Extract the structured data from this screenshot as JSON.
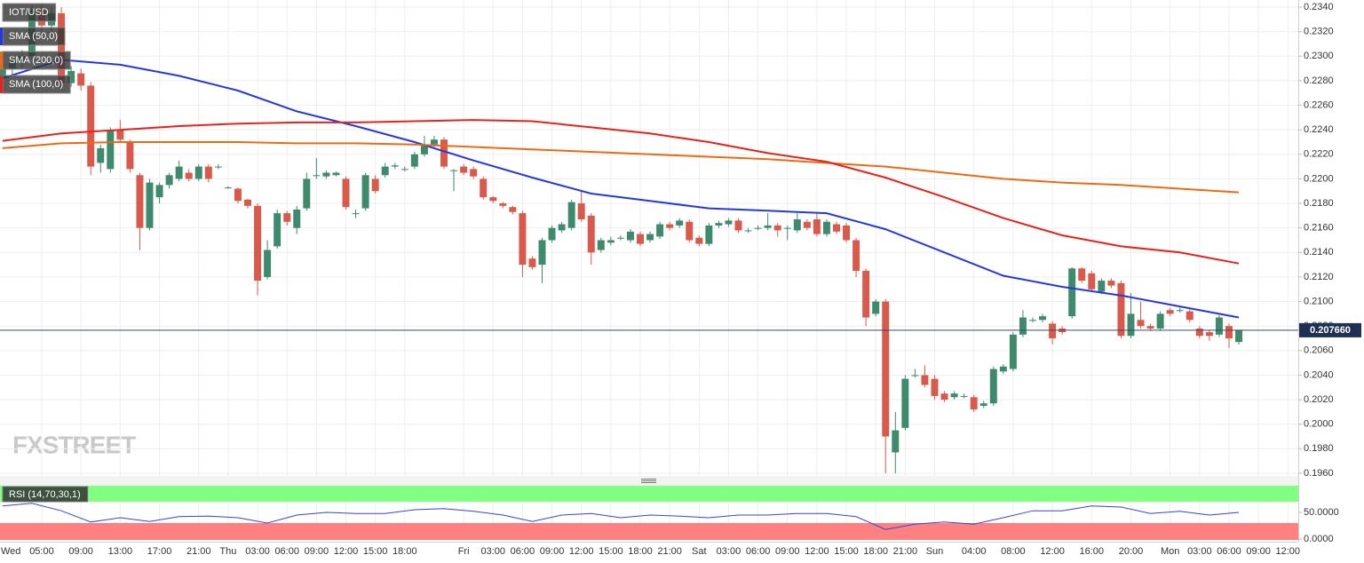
{
  "chart_data": [
    {
      "type": "candlestick",
      "symbol": "IOT/USD",
      "watermark": "FXSTREET",
      "up_color": "#3d8a6c",
      "down_color": "#d9594b",
      "grid": true,
      "open": [
        0.2283,
        0.229,
        0.2296,
        0.23,
        0.2338,
        0.2325,
        0.2335,
        0.2278,
        0.2286,
        0.2276,
        0.2213,
        0.2208,
        0.224,
        0.223,
        0.2203,
        0.216,
        0.2185,
        0.2195,
        0.22,
        0.2205,
        0.22,
        0.221,
        0.221,
        0.2193,
        0.2192,
        0.2183,
        0.2178,
        0.212,
        0.2145,
        0.2172,
        0.216,
        0.2176,
        0.2203,
        0.2202,
        0.2203,
        0.22,
        0.2172,
        0.2176,
        0.22,
        0.2203,
        0.221,
        0.2208,
        0.221,
        0.222,
        0.2228,
        0.2232,
        0.2207,
        0.221,
        0.2208,
        0.22,
        0.2185,
        0.218,
        0.2177,
        0.2172,
        0.2135,
        0.213,
        0.215,
        0.2158,
        0.216,
        0.218,
        0.217,
        0.2142,
        0.2148,
        0.2152,
        0.215,
        0.2155,
        0.215,
        0.2153,
        0.2163,
        0.2162,
        0.2165,
        0.2152,
        0.2147,
        0.2162,
        0.2163,
        0.2166,
        0.2158,
        0.216,
        0.216,
        0.2162,
        0.216,
        0.2158,
        0.2165,
        0.2167,
        0.2155,
        0.2163,
        0.2162,
        0.215,
        0.2125,
        0.209,
        0.21,
        0.1977,
        0.1997,
        0.204,
        0.204,
        0.2037,
        0.2025,
        0.2022,
        0.2023,
        0.2022,
        0.2015,
        0.2017,
        0.2043,
        0.2045,
        0.2073,
        0.2085,
        0.2085,
        0.2082,
        0.2078,
        0.2088,
        0.2127,
        0.2123,
        0.2108,
        0.2117,
        0.2115,
        0.2072,
        0.2085,
        0.208,
        0.2078,
        0.2093,
        0.2093,
        0.2092,
        0.2078,
        0.2075,
        0.2073,
        0.208,
        0.2067
      ],
      "high": [
        0.2292,
        0.23,
        0.2305,
        0.2342,
        0.2342,
        0.234,
        0.234,
        0.2292,
        0.229,
        0.2279,
        0.2228,
        0.2242,
        0.2248,
        0.2232,
        0.2205,
        0.22,
        0.2197,
        0.2205,
        0.2215,
        0.2208,
        0.2212,
        0.2212,
        0.2212,
        0.2194,
        0.2193,
        0.2184,
        0.218,
        0.215,
        0.2175,
        0.2174,
        0.2178,
        0.2205,
        0.2217,
        0.2207,
        0.2206,
        0.2202,
        0.2175,
        0.2205,
        0.2203,
        0.2213,
        0.2213,
        0.221,
        0.2222,
        0.2235,
        0.2235,
        0.2234,
        0.2208,
        0.2212,
        0.221,
        0.2202,
        0.2186,
        0.2181,
        0.2178,
        0.2174,
        0.2137,
        0.2152,
        0.2162,
        0.2165,
        0.2183,
        0.219,
        0.2172,
        0.2152,
        0.2153,
        0.2154,
        0.2159,
        0.2157,
        0.2157,
        0.2165,
        0.2165,
        0.2168,
        0.2167,
        0.2154,
        0.2164,
        0.2166,
        0.2168,
        0.2168,
        0.216,
        0.2162,
        0.2172,
        0.2164,
        0.2162,
        0.2172,
        0.2167,
        0.2172,
        0.2167,
        0.2165,
        0.2164,
        0.2152,
        0.2127,
        0.2102,
        0.2102,
        0.201,
        0.204,
        0.2045,
        0.2048,
        0.204,
        0.2027,
        0.2027,
        0.2025,
        0.2024,
        0.2019,
        0.2047,
        0.2049,
        0.2075,
        0.2093,
        0.2087,
        0.209,
        0.2084,
        0.208,
        0.2128,
        0.2128,
        0.2125,
        0.2119,
        0.2119,
        0.2117,
        0.2107,
        0.21,
        0.2082,
        0.2092,
        0.2095,
        0.2095,
        0.2094,
        0.208,
        0.2077,
        0.2089,
        0.2082,
        0.20766
      ],
      "low": [
        0.2278,
        0.2285,
        0.229,
        0.2298,
        0.232,
        0.2318,
        0.2272,
        0.2275,
        0.2272,
        0.2203,
        0.2205,
        0.2205,
        0.223,
        0.2205,
        0.2142,
        0.2158,
        0.218,
        0.2192,
        0.2198,
        0.2198,
        0.2198,
        0.2197,
        0.2208,
        0.2192,
        0.218,
        0.2176,
        0.2105,
        0.2118,
        0.2143,
        0.2162,
        0.2155,
        0.2174,
        0.22,
        0.22,
        0.2202,
        0.2175,
        0.2168,
        0.2174,
        0.2188,
        0.2201,
        0.2208,
        0.2206,
        0.2208,
        0.2218,
        0.2226,
        0.2208,
        0.219,
        0.2203,
        0.22,
        0.2183,
        0.218,
        0.2176,
        0.2171,
        0.212,
        0.2126,
        0.2115,
        0.2148,
        0.2156,
        0.2158,
        0.2165,
        0.213,
        0.214,
        0.2146,
        0.215,
        0.2148,
        0.2145,
        0.2148,
        0.2151,
        0.2158,
        0.216,
        0.2148,
        0.2145,
        0.2145,
        0.216,
        0.2161,
        0.2156,
        0.2156,
        0.2158,
        0.2158,
        0.2153,
        0.215,
        0.2156,
        0.2158,
        0.2153,
        0.2153,
        0.2155,
        0.2148,
        0.212,
        0.208,
        0.2088,
        0.196,
        0.196,
        0.1995,
        0.2038,
        0.203,
        0.202,
        0.2018,
        0.202,
        0.2021,
        0.201,
        0.2013,
        0.2015,
        0.2041,
        0.2043,
        0.2071,
        0.2083,
        0.2083,
        0.2065,
        0.2073,
        0.2086,
        0.2115,
        0.2108,
        0.2106,
        0.2111,
        0.207,
        0.207,
        0.2078,
        0.2076,
        0.2076,
        0.2088,
        0.2091,
        0.2083,
        0.207,
        0.2068,
        0.2071,
        0.2062,
        0.2065
      ],
      "close": [
        0.229,
        0.2296,
        0.23,
        0.2338,
        0.2325,
        0.2335,
        0.2278,
        0.2288,
        0.2276,
        0.221,
        0.2225,
        0.224,
        0.2232,
        0.2208,
        0.216,
        0.2197,
        0.2195,
        0.2203,
        0.221,
        0.22,
        0.221,
        0.22,
        0.221,
        0.2193,
        0.2182,
        0.2178,
        0.2117,
        0.2142,
        0.2172,
        0.2165,
        0.2175,
        0.22,
        0.2203,
        0.2205,
        0.2205,
        0.2177,
        0.2172,
        0.2203,
        0.219,
        0.221,
        0.2211,
        0.2208,
        0.222,
        0.2228,
        0.2232,
        0.221,
        0.2207,
        0.2205,
        0.2202,
        0.2185,
        0.2182,
        0.2178,
        0.2173,
        0.213,
        0.2128,
        0.215,
        0.216,
        0.2163,
        0.2181,
        0.2167,
        0.214,
        0.215,
        0.215,
        0.2152,
        0.2157,
        0.2147,
        0.2155,
        0.2163,
        0.216,
        0.2166,
        0.215,
        0.2147,
        0.2162,
        0.2164,
        0.2166,
        0.2158,
        0.2158,
        0.216,
        0.2162,
        0.2158,
        0.216,
        0.2167,
        0.216,
        0.2155,
        0.2165,
        0.2157,
        0.215,
        0.2125,
        0.2087,
        0.21,
        0.199,
        0.1995,
        0.2037,
        0.204,
        0.2032,
        0.2023,
        0.202,
        0.2025,
        0.2023,
        0.2012,
        0.2017,
        0.2045,
        0.2047,
        0.2073,
        0.2087,
        0.2085,
        0.2088,
        0.207,
        0.2075,
        0.2127,
        0.2117,
        0.211,
        0.2117,
        0.2113,
        0.2072,
        0.209,
        0.208,
        0.2078,
        0.209,
        0.209,
        0.2093,
        0.2085,
        0.2072,
        0.2072,
        0.2087,
        0.207,
        0.20766
      ],
      "series": [
        {
          "name": "SMA (50,0)",
          "color": "#2438e0",
          "x": [
            0,
            6,
            12,
            18,
            24,
            30,
            36,
            42,
            48,
            54,
            60,
            66,
            72,
            78,
            84,
            90,
            96,
            102,
            108,
            114,
            120,
            126
          ],
          "values": [
            0.2282,
            0.2297,
            0.2293,
            0.2284,
            0.2272,
            0.2255,
            0.2243,
            0.223,
            0.2215,
            0.2201,
            0.2188,
            0.2182,
            0.2176,
            0.2174,
            0.2172,
            0.2159,
            0.214,
            0.2121,
            0.2112,
            0.2105,
            0.2096,
            0.2087
          ]
        },
        {
          "name": "SMA (200,0)",
          "color": "#ec6a12",
          "x": [
            0,
            6,
            12,
            18,
            24,
            30,
            36,
            42,
            48,
            54,
            60,
            66,
            72,
            78,
            84,
            90,
            96,
            102,
            108,
            114,
            120,
            126
          ],
          "values": [
            0.2225,
            0.2229,
            0.223,
            0.223,
            0.223,
            0.2229,
            0.2229,
            0.2228,
            0.2226,
            0.2224,
            0.2222,
            0.222,
            0.2218,
            0.2216,
            0.2213,
            0.221,
            0.2205,
            0.22,
            0.2197,
            0.2195,
            0.2192,
            0.2189
          ]
        },
        {
          "name": "SMA (100,0)",
          "color": "#e8221a",
          "x": [
            0,
            6,
            12,
            18,
            24,
            30,
            36,
            42,
            48,
            54,
            60,
            66,
            72,
            78,
            84,
            90,
            96,
            102,
            108,
            114,
            120,
            126
          ],
          "values": [
            0.2231,
            0.2237,
            0.224,
            0.2243,
            0.2245,
            0.2246,
            0.2246,
            0.2247,
            0.2248,
            0.2247,
            0.2242,
            0.2237,
            0.223,
            0.2221,
            0.2214,
            0.2201,
            0.2185,
            0.2168,
            0.2154,
            0.2145,
            0.214,
            0.2131
          ]
        }
      ],
      "last_price": 0.20766,
      "last_price_label": "0.207660",
      "ylim": [
        0.19578,
        0.23458
      ],
      "yticks": [
        {
          "value": 0.234,
          "label": "0.2340"
        },
        {
          "value": 0.232,
          "label": "0.2320"
        },
        {
          "value": 0.23,
          "label": "0.2300"
        },
        {
          "value": 0.228,
          "label": "0.2280"
        },
        {
          "value": 0.226,
          "label": "0.2260"
        },
        {
          "value": 0.224,
          "label": "0.2240"
        },
        {
          "value": 0.222,
          "label": "0.2220"
        },
        {
          "value": 0.22,
          "label": "0.2200"
        },
        {
          "value": 0.218,
          "label": "0.2180"
        },
        {
          "value": 0.216,
          "label": "0.2160"
        },
        {
          "value": 0.214,
          "label": "0.2140"
        },
        {
          "value": 0.212,
          "label": "0.2120"
        },
        {
          "value": 0.21,
          "label": "0.2100"
        },
        {
          "value": 0.208,
          "label": "0.2080"
        },
        {
          "value": 0.206,
          "label": "0.2060"
        },
        {
          "value": 0.204,
          "label": "0.2040"
        },
        {
          "value": 0.202,
          "label": "0.2020"
        },
        {
          "value": 0.2,
          "label": "0.2000"
        },
        {
          "value": 0.198,
          "label": "0.1980"
        },
        {
          "value": 0.196,
          "label": "0.1960"
        }
      ],
      "xlim": [
        -0.25,
        132.06
      ],
      "xticks": [
        {
          "value": -1,
          "label": "Wed"
        },
        {
          "value": 4,
          "label": "05:00"
        },
        {
          "value": 8,
          "label": "09:00"
        },
        {
          "value": 12,
          "label": "13:00"
        },
        {
          "value": 16,
          "label": "17:00"
        },
        {
          "value": 20,
          "label": "21:00"
        },
        {
          "value": 23,
          "label": "Thu"
        },
        {
          "value": 26,
          "label": "03:00"
        },
        {
          "value": 29,
          "label": "06:00"
        },
        {
          "value": 32,
          "label": "09:00"
        },
        {
          "value": 35,
          "label": "12:00"
        },
        {
          "value": 38,
          "label": "15:00"
        },
        {
          "value": 41,
          "label": "18:00"
        },
        {
          "value": 47,
          "label": "Fri"
        },
        {
          "value": 50,
          "label": "03:00"
        },
        {
          "value": 53,
          "label": "06:00"
        },
        {
          "value": 56,
          "label": "09:00"
        },
        {
          "value": 59,
          "label": "12:00"
        },
        {
          "value": 62,
          "label": "15:00"
        },
        {
          "value": 65,
          "label": "18:00"
        },
        {
          "value": 68,
          "label": "21:00"
        },
        {
          "value": 71,
          "label": "Sat"
        },
        {
          "value": 74,
          "label": "03:00"
        },
        {
          "value": 77,
          "label": "06:00"
        },
        {
          "value": 80,
          "label": "09:00"
        },
        {
          "value": 83,
          "label": "12:00"
        },
        {
          "value": 86,
          "label": "15:00"
        },
        {
          "value": 89,
          "label": "18:00"
        },
        {
          "value": 92,
          "label": "21:00"
        },
        {
          "value": 95,
          "label": "Sun"
        },
        {
          "value": 99,
          "label": "04:00"
        },
        {
          "value": 103,
          "label": "08:00"
        },
        {
          "value": 107,
          "label": "12:00"
        },
        {
          "value": 111,
          "label": "16:00"
        },
        {
          "value": 115,
          "label": "20:00"
        },
        {
          "value": 119,
          "label": "Mon"
        },
        {
          "value": 122,
          "label": "03:00"
        },
        {
          "value": 125,
          "label": "06:00"
        },
        {
          "value": 128,
          "label": "09:00"
        },
        {
          "value": 131,
          "label": "12:00"
        }
      ]
    },
    {
      "type": "line",
      "title": "RSI (14,70,30,1)",
      "color": "#3347d6",
      "overbought": 70,
      "oversold": 30,
      "overbought_color": "#80ff80",
      "oversold_color": "#ff8080",
      "x": [
        0,
        3,
        6,
        9,
        12,
        15,
        18,
        21,
        24,
        27,
        30,
        33,
        36,
        39,
        42,
        45,
        48,
        51,
        54,
        57,
        60,
        63,
        66,
        69,
        72,
        75,
        78,
        81,
        84,
        87,
        90,
        93,
        96,
        99,
        102,
        105,
        108,
        111,
        114,
        117,
        120,
        123,
        126
      ],
      "values": [
        62,
        67,
        53,
        32,
        40,
        33,
        42,
        43,
        40,
        30,
        45,
        50,
        48,
        48,
        55,
        57,
        52,
        45,
        33,
        45,
        48,
        40,
        45,
        43,
        40,
        45,
        45,
        48,
        48,
        42,
        18,
        28,
        32,
        28,
        40,
        53,
        53,
        62,
        60,
        48,
        52,
        45,
        50
      ],
      "ylim": [
        0,
        100
      ],
      "yticks": [
        {
          "value": 50,
          "label": "50.0000"
        },
        {
          "value": 0,
          "label": "0.0000"
        }
      ]
    }
  ]
}
